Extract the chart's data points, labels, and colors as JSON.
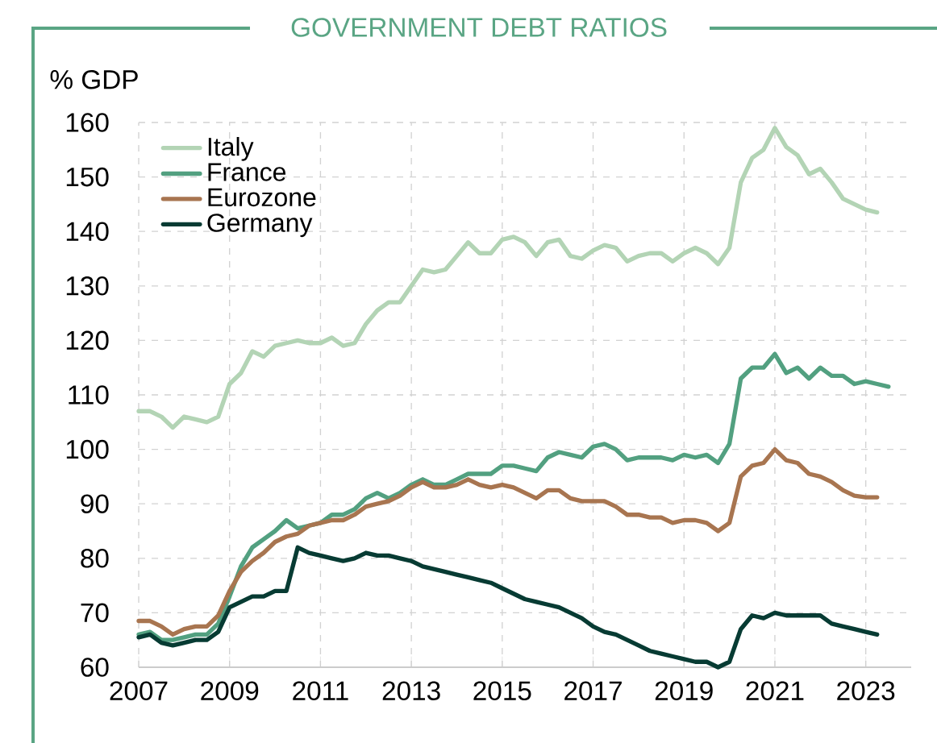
{
  "chart_data": {
    "type": "line",
    "title": "GOVERNMENT DEBT RATIOS",
    "ylabel": "% GDP",
    "x": [
      2007,
      2007.25,
      2007.5,
      2007.75,
      2008,
      2008.25,
      2008.5,
      2008.75,
      2009,
      2009.25,
      2009.5,
      2009.75,
      2010,
      2010.25,
      2010.5,
      2010.75,
      2011,
      2011.25,
      2011.5,
      2011.75,
      2012,
      2012.25,
      2012.5,
      2012.75,
      2013,
      2013.25,
      2013.5,
      2013.75,
      2014,
      2014.25,
      2014.5,
      2014.75,
      2015,
      2015.25,
      2015.5,
      2015.75,
      2016,
      2016.25,
      2016.5,
      2016.75,
      2017,
      2017.25,
      2017.5,
      2017.75,
      2018,
      2018.25,
      2018.5,
      2018.75,
      2019,
      2019.25,
      2019.5,
      2019.75,
      2020,
      2020.25,
      2020.5,
      2020.75,
      2021,
      2021.25,
      2021.5,
      2021.75,
      2022,
      2022.25,
      2022.5,
      2022.75,
      2023,
      2023.25,
      2023.5
    ],
    "series": [
      {
        "name": "Italy",
        "color": "#b3d4b5",
        "values": [
          107,
          107,
          106,
          104,
          106,
          105.5,
          105,
          106,
          112,
          114,
          118,
          117,
          119,
          119.5,
          120,
          119.5,
          119.5,
          120.5,
          119,
          119.5,
          123,
          125.5,
          127,
          127,
          130,
          133,
          132.5,
          133,
          135.5,
          138,
          136,
          136,
          138.5,
          139,
          138,
          135.5,
          138,
          138.5,
          135.5,
          135,
          136.5,
          137.5,
          137,
          134.5,
          135.5,
          136,
          136,
          134.5,
          136,
          137,
          136,
          134,
          137,
          149,
          153.5,
          155,
          159,
          155.5,
          154,
          150.5,
          151.5,
          149,
          146,
          145,
          144,
          143.5,
          null
        ]
      },
      {
        "name": "France",
        "color": "#52a080",
        "values": [
          66,
          66.5,
          65,
          65,
          65.5,
          66,
          66,
          68,
          73,
          78.5,
          82,
          83.5,
          85,
          87,
          85.5,
          86,
          86.5,
          88,
          88,
          89,
          91,
          92,
          91,
          92,
          93.5,
          94.5,
          93.5,
          93.5,
          94.5,
          95.5,
          95.5,
          95.5,
          97,
          97,
          96.5,
          96,
          98.5,
          99.5,
          99,
          98.5,
          100.5,
          101,
          100,
          98,
          98.5,
          98.5,
          98.5,
          98,
          99,
          98.5,
          99,
          97.5,
          101,
          113,
          115,
          115,
          117.5,
          114,
          115,
          113,
          115,
          113.5,
          113.5,
          112,
          112.5,
          112,
          111.5
        ]
      },
      {
        "name": "Eurozone",
        "color": "#a87550",
        "values": [
          68.5,
          68.5,
          67.5,
          66,
          67,
          67.5,
          67.5,
          69.5,
          74,
          77.5,
          79.5,
          81,
          83,
          84,
          84.5,
          86,
          86.5,
          87,
          87,
          88,
          89.5,
          90,
          90.5,
          91.5,
          93,
          94,
          93,
          93,
          93.5,
          94.5,
          93.5,
          93,
          93.5,
          93,
          92,
          91,
          92.5,
          92.5,
          91,
          90.5,
          90.5,
          90.5,
          89.5,
          88,
          88,
          87.5,
          87.5,
          86.5,
          87,
          87,
          86.5,
          85,
          86.5,
          95,
          97,
          97.5,
          100,
          98,
          97.5,
          95.5,
          95,
          94,
          92.5,
          91.5,
          91.2,
          91.2,
          null
        ]
      },
      {
        "name": "Germany",
        "color": "#073b33",
        "values": [
          65.5,
          66,
          64.5,
          64,
          64.5,
          65,
          65,
          66.5,
          71,
          72,
          73,
          73,
          74,
          74,
          82,
          81,
          80.5,
          80,
          79.5,
          80,
          81,
          80.5,
          80.5,
          80,
          79.5,
          78.5,
          78,
          77.5,
          77,
          76.5,
          76,
          75.5,
          74.5,
          73.5,
          72.5,
          72,
          71.5,
          71,
          70,
          69,
          67.5,
          66.5,
          66,
          65,
          64,
          63,
          62.5,
          62,
          61.5,
          61,
          61,
          60,
          61,
          67,
          69.5,
          69,
          70,
          69.5,
          69.5,
          69.5,
          69.5,
          68,
          67.5,
          67,
          66.5,
          66,
          null
        ]
      }
    ],
    "xlim": [
      2007,
      2024
    ],
    "ylim": [
      60,
      160
    ],
    "xticks": [
      2007,
      2009,
      2011,
      2013,
      2015,
      2017,
      2019,
      2021,
      2023
    ],
    "yticks": [
      60,
      70,
      80,
      90,
      100,
      110,
      120,
      130,
      140,
      150,
      160
    ],
    "grid": true,
    "legend": "top left",
    "line_style": "solid",
    "marker": "none"
  }
}
